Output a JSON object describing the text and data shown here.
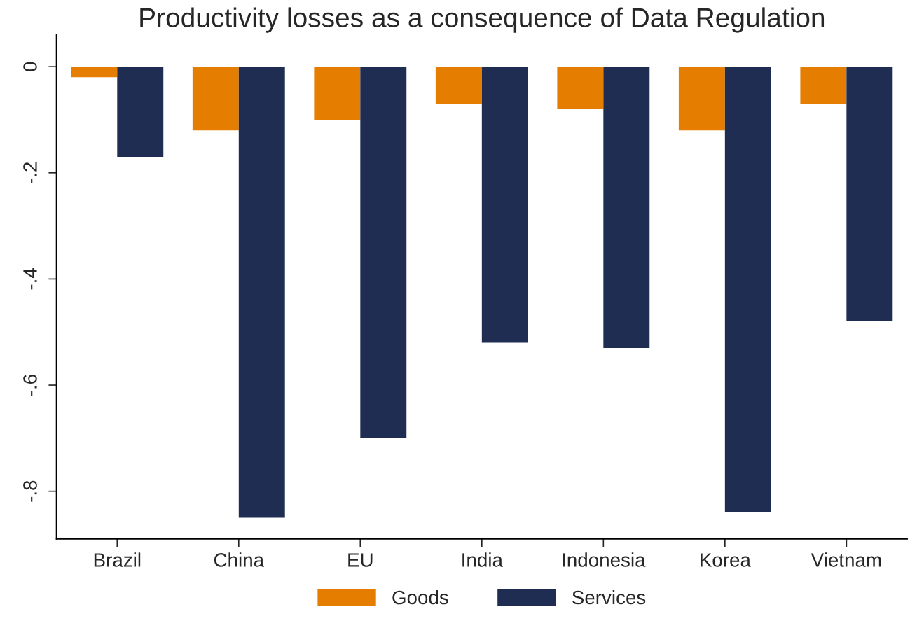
{
  "chart_data": {
    "type": "bar",
    "title": "Productivity losses as a consequence of Data Regulation",
    "categories": [
      "Brazil",
      "China",
      "EU",
      "India",
      "Indonesia",
      "Korea",
      "Vietnam"
    ],
    "series": [
      {
        "name": "Goods",
        "color": "#e57e00",
        "values": [
          -0.02,
          -0.12,
          -0.1,
          -0.07,
          -0.08,
          -0.12,
          -0.07
        ]
      },
      {
        "name": "Services",
        "color": "#1f2d52",
        "values": [
          -0.17,
          -0.85,
          -0.7,
          -0.52,
          -0.53,
          -0.84,
          -0.48
        ]
      }
    ],
    "ylim": [
      -0.89,
      0.06
    ],
    "yticks": [
      {
        "value": -0.8,
        "label": "-.8"
      },
      {
        "value": -0.6,
        "label": "-.6"
      },
      {
        "value": -0.4,
        "label": "-.4"
      },
      {
        "value": -0.2,
        "label": "-.2"
      },
      0
    ],
    "grid": false,
    "legend": "bottom"
  }
}
